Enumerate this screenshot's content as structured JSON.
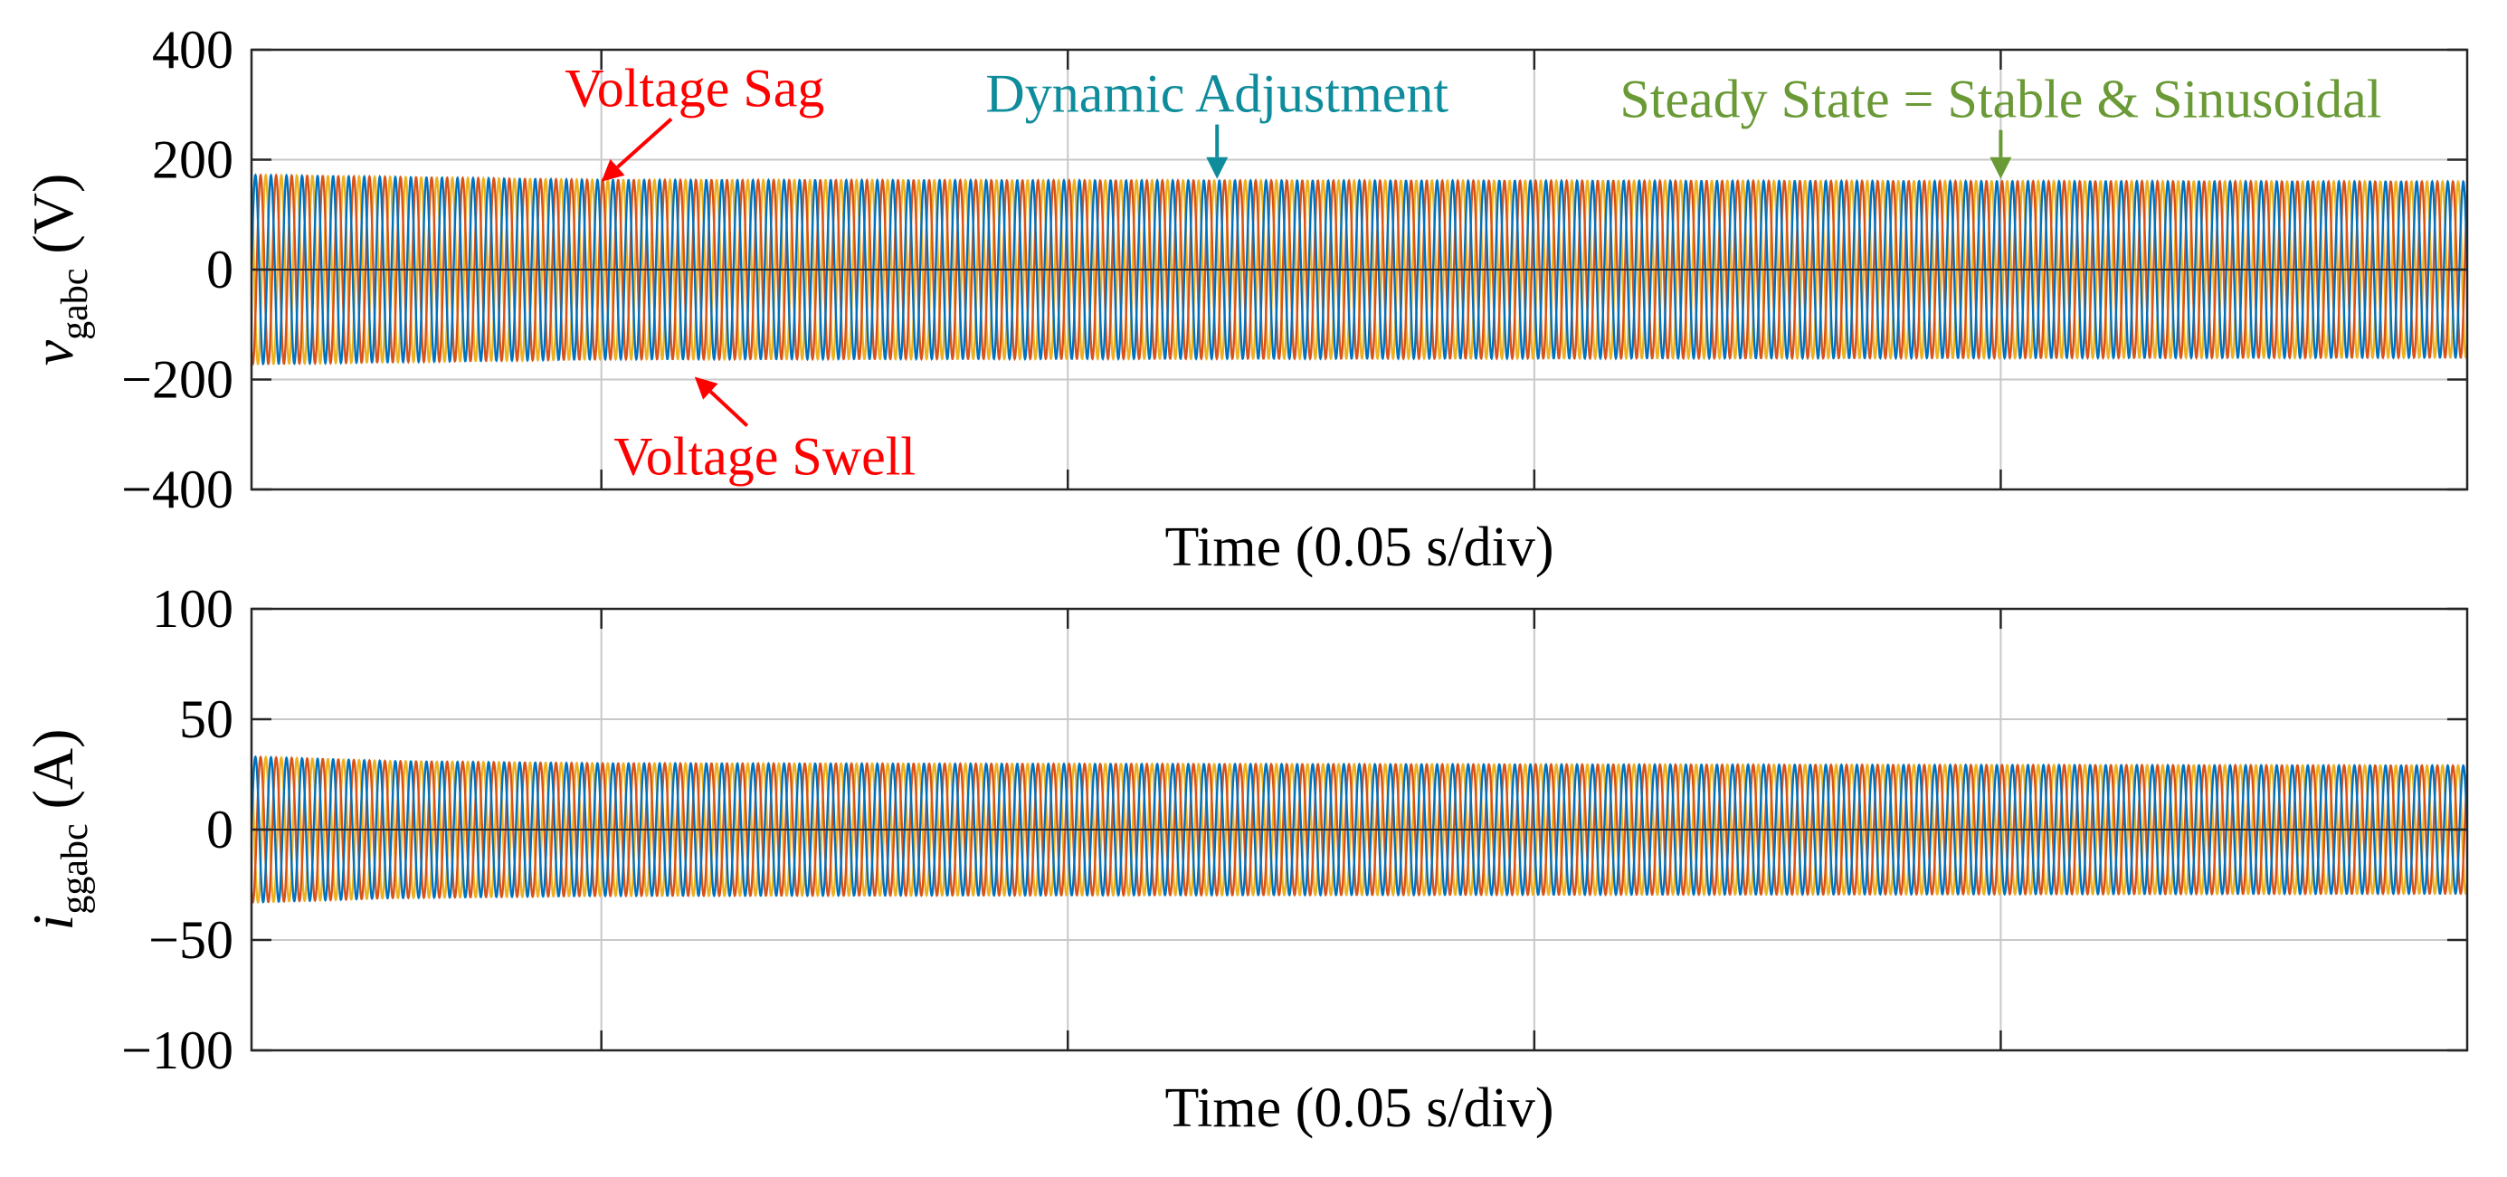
{
  "chart_data": [
    {
      "type": "line",
      "x_unit": "div",
      "xlim": [
        0,
        4.75
      ],
      "ylim": [
        -400,
        400
      ],
      "yticks": [
        400,
        200,
        0,
        -200,
        -400
      ],
      "ytick_labels": [
        "400",
        "200",
        "0",
        "−200",
        "−400"
      ],
      "xticks": [
        0.75,
        1.75,
        2.75,
        3.75
      ],
      "grid": true,
      "xlabel": "Time (0.05 s/div)",
      "ylabel_main": "v",
      "ylabel_sub": "gabc",
      "ylabel_unit": " (V)",
      "series_colors": [
        "#0072BD",
        "#D95319",
        "#EDB120"
      ],
      "waveform": {
        "phases": 3,
        "cycles_per_div": 30,
        "amplitude_envelope": [
          [
            0,
            172
          ],
          [
            0.75,
            163
          ],
          [
            4.75,
            160
          ]
        ]
      },
      "annotations": [
        {
          "text": "Voltage Sag",
          "color": "#FF0000",
          "x": 0.75,
          "y": 160,
          "label_x": 0.95,
          "label_y": 330
        },
        {
          "text": "Voltage Swell",
          "color": "#FF0000",
          "x": 0.95,
          "y": -195,
          "label_x": 1.1,
          "label_y": -340
        },
        {
          "text": "Dynamic Adjustment",
          "color": "#0E8C9C",
          "x": 2.07,
          "y": 165,
          "label_x": 2.07,
          "label_y": 320
        },
        {
          "text": "Steady State = Stable & Sinusoidal",
          "color": "#6A9A36",
          "x": 3.75,
          "y": 165,
          "label_x": 3.75,
          "label_y": 310
        }
      ]
    },
    {
      "type": "line",
      "x_unit": "div",
      "xlim": [
        0,
        4.75
      ],
      "ylim": [
        -100,
        100
      ],
      "yticks": [
        100,
        50,
        0,
        -50,
        -100
      ],
      "ytick_labels": [
        "100",
        "50",
        "0",
        "−50",
        "−100"
      ],
      "xticks": [
        0.75,
        1.75,
        2.75,
        3.75
      ],
      "grid": true,
      "xlabel": "Time (0.05 s/div)",
      "ylabel_main": "i",
      "ylabel_sub": "ggabc",
      "ylabel_unit": " (A)",
      "series_colors": [
        "#0072BD",
        "#D95319",
        "#EDB120"
      ],
      "waveform": {
        "phases": 3,
        "cycles_per_div": 30,
        "amplitude_envelope": [
          [
            0,
            33
          ],
          [
            0.3,
            31
          ],
          [
            0.75,
            30
          ],
          [
            4.75,
            29
          ]
        ]
      },
      "annotations": []
    }
  ]
}
